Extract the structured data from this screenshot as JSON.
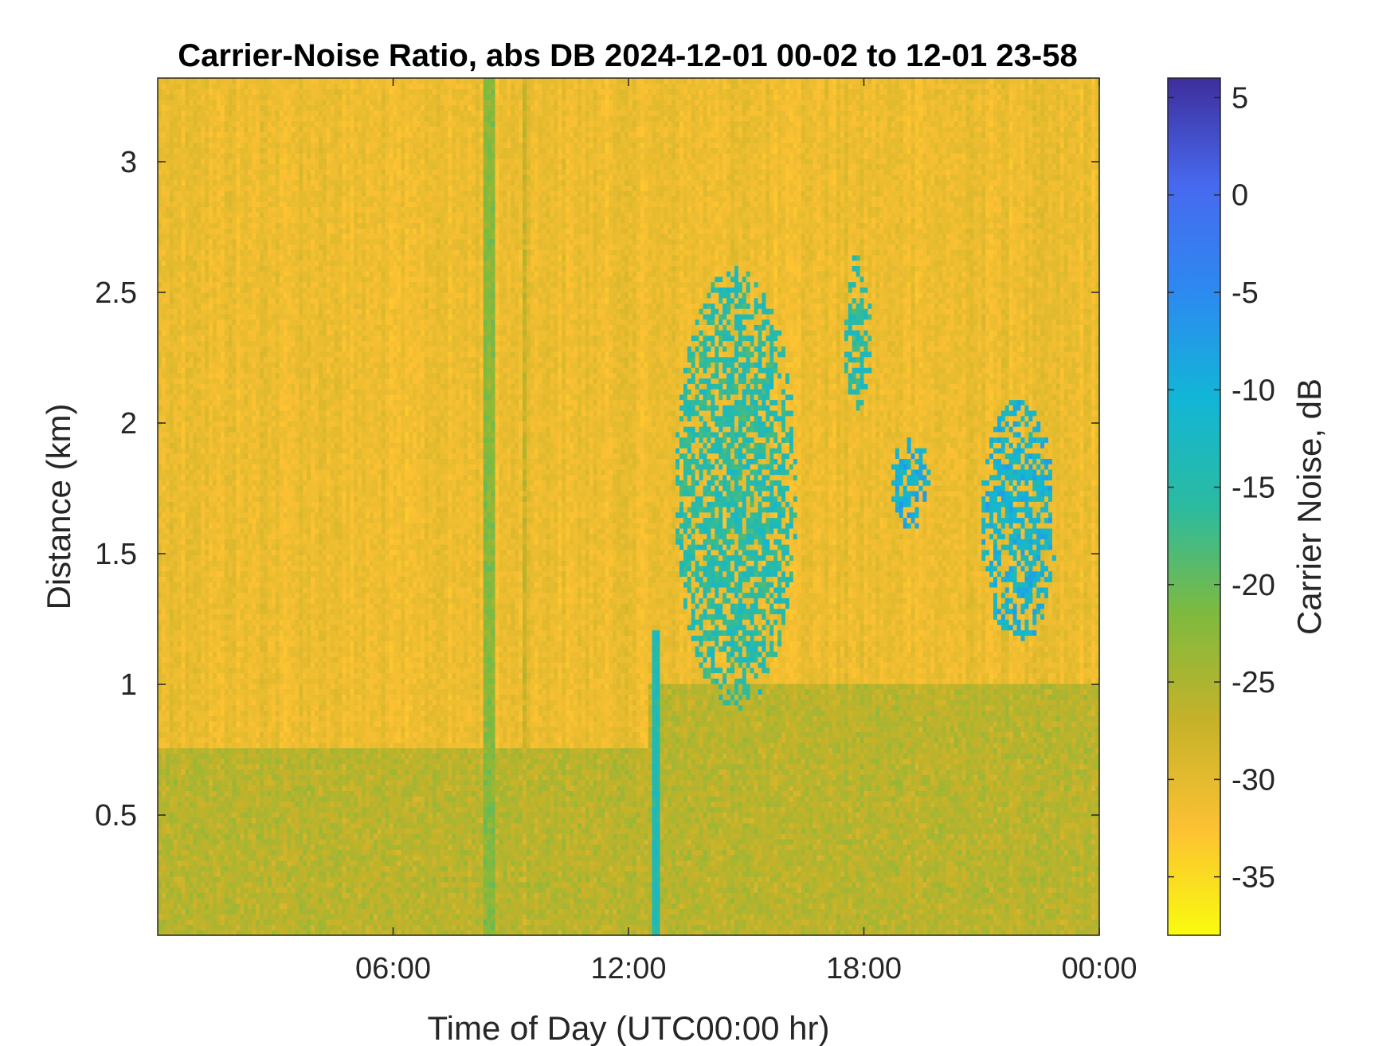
{
  "chart_data": {
    "type": "heatmap",
    "title": "Carrier-Noise Ratio, abs DB 2024-12-01 00-02 to 12-01 23-58",
    "xlabel": "Time of Day (UTC00:00 hr)",
    "ylabel": "Distance (km)",
    "xlim_hours": [
      0,
      24
    ],
    "ylim_km": [
      0.04,
      3.32
    ],
    "x_ticks": [
      {
        "value": 6,
        "label": "06:00"
      },
      {
        "value": 12,
        "label": "12:00"
      },
      {
        "value": 18,
        "label": "18:00"
      },
      {
        "value": 24,
        "label": "00:00"
      }
    ],
    "y_ticks": [
      {
        "value": 0.5,
        "label": "0.5"
      },
      {
        "value": 1,
        "label": "1"
      },
      {
        "value": 1.5,
        "label": "1.5"
      },
      {
        "value": 2,
        "label": "2"
      },
      {
        "value": 2.5,
        "label": "2.5"
      },
      {
        "value": 3,
        "label": "3"
      }
    ],
    "colorbar": {
      "label": "Carrier Noise, dB",
      "range": [
        -38,
        6
      ],
      "ticks": [
        {
          "value": 5,
          "label": "5"
        },
        {
          "value": 0,
          "label": "0"
        },
        {
          "value": -5,
          "label": "-5"
        },
        {
          "value": -10,
          "label": "-10"
        },
        {
          "value": -15,
          "label": "-15"
        },
        {
          "value": -20,
          "label": "-20"
        },
        {
          "value": -25,
          "label": "-25"
        },
        {
          "value": -30,
          "label": "-30"
        },
        {
          "value": -35,
          "label": "-35"
        }
      ],
      "colormap": "parula-reversed",
      "colors": [
        "#f9fb0e",
        "#fcc133",
        "#c6b229",
        "#7eba3e",
        "#2bbba0",
        "#12b6d6",
        "#2c8af0",
        "#4769ef",
        "#3e2e9c"
      ]
    },
    "background_dB": -31,
    "features": [
      {
        "name": "near-surface layer",
        "time_h": [
          0,
          12.5
        ],
        "dist_km": [
          0.04,
          0.75
        ],
        "dB": -26
      },
      {
        "name": "near-surface layer",
        "time_h": [
          12.5,
          24
        ],
        "dist_km": [
          0.04,
          1.0
        ],
        "dB": -26
      },
      {
        "name": "vertical streak",
        "time_h": [
          8.3,
          8.55
        ],
        "dist_km": [
          0.04,
          3.32
        ],
        "dB": -22
      },
      {
        "name": "vertical streak",
        "time_h": [
          12.6,
          12.75
        ],
        "dist_km": [
          0.04,
          1.2
        ],
        "dB": -14
      },
      {
        "name": "vertical streak",
        "time_h": [
          9.3,
          9.45
        ],
        "dist_km": [
          0.04,
          3.32
        ],
        "dB": -27
      },
      {
        "name": "cloud",
        "time_h": [
          13.2,
          16.3
        ],
        "dist_km": [
          0.9,
          2.6
        ],
        "dB": -15
      },
      {
        "name": "cloud",
        "time_h": [
          17.5,
          18.2
        ],
        "dist_km": [
          2.05,
          2.65
        ],
        "dB": -15
      },
      {
        "name": "cloud",
        "time_h": [
          18.7,
          19.7
        ],
        "dist_km": [
          1.6,
          1.95
        ],
        "dB": -10
      },
      {
        "name": "cloud",
        "time_h": [
          21.0,
          22.9
        ],
        "dist_km": [
          1.15,
          2.1
        ],
        "dB": -11
      }
    ]
  }
}
